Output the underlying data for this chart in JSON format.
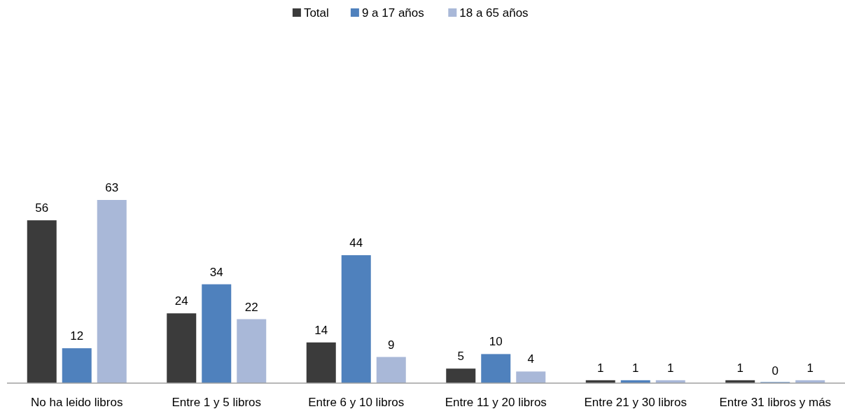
{
  "chart_data": {
    "type": "bar",
    "categories": [
      "No ha leido libros",
      "Entre 1 y 5 libros",
      "Entre 6 y 10 libros",
      "Entre 11 y 20 libros",
      "Entre 21 y 30 libros",
      "Entre 31 libros y más"
    ],
    "series": [
      {
        "name": "Total",
        "color": "#3b3b3b",
        "values": [
          56,
          24,
          14,
          5,
          1,
          1
        ]
      },
      {
        "name": "9 a 17 años",
        "color": "#4f81bd",
        "values": [
          12,
          34,
          44,
          10,
          1,
          0
        ]
      },
      {
        "name": "18 a 65 años",
        "color": "#a9b8d8",
        "values": [
          63,
          22,
          9,
          4,
          1,
          1
        ]
      }
    ],
    "data_labels": true,
    "legend": "top"
  }
}
